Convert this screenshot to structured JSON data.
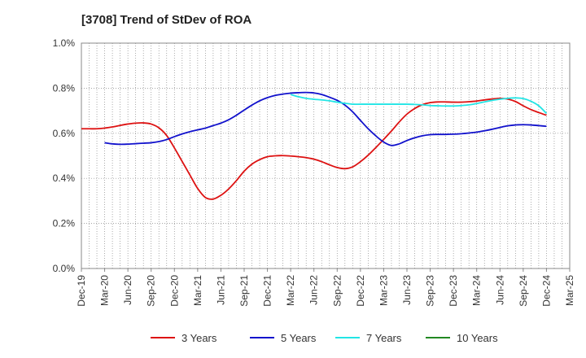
{
  "chart_data": {
    "type": "line",
    "title": "[3708]  Trend of StDev of ROA",
    "xlabel": "",
    "ylabel": "",
    "ylim": [
      0,
      1.0
    ],
    "yticks": [
      "0.0%",
      "0.2%",
      "0.4%",
      "0.6%",
      "0.8%",
      "1.0%"
    ],
    "x_ticks": [
      "Dec-19",
      "Mar-20",
      "Jun-20",
      "Sep-20",
      "Dec-20",
      "Mar-21",
      "Jun-21",
      "Sep-21",
      "Dec-21",
      "Mar-22",
      "Jun-22",
      "Sep-22",
      "Dec-22",
      "Mar-23",
      "Jun-23",
      "Sep-23",
      "Dec-23",
      "Mar-24",
      "Jun-24",
      "Sep-24",
      "Dec-24",
      "Mar-25"
    ],
    "grid": true,
    "legend_position": "bottom",
    "series": [
      {
        "name": "3 Years",
        "color": "#dd1111",
        "values": [
          [
            "Dec-19",
            0.62
          ],
          [
            "Jan-20",
            0.62
          ],
          [
            "Feb-20",
            0.62
          ],
          [
            "Mar-20",
            0.623
          ],
          [
            "Apr-20",
            0.628
          ],
          [
            "May-20",
            0.635
          ],
          [
            "Jun-20",
            0.641
          ],
          [
            "Jul-20",
            0.645
          ],
          [
            "Aug-20",
            0.646
          ],
          [
            "Sep-20",
            0.641
          ],
          [
            "Oct-20",
            0.624
          ],
          [
            "Nov-20",
            0.59
          ],
          [
            "Dec-20",
            0.535
          ],
          [
            "Jan-21",
            0.475
          ],
          [
            "Feb-21",
            0.415
          ],
          [
            "Mar-21",
            0.355
          ],
          [
            "Apr-21",
            0.315
          ],
          [
            "May-21",
            0.308
          ],
          [
            "Jun-21",
            0.325
          ],
          [
            "Jul-21",
            0.353
          ],
          [
            "Aug-21",
            0.39
          ],
          [
            "Sep-21",
            0.432
          ],
          [
            "Oct-21",
            0.463
          ],
          [
            "Nov-21",
            0.483
          ],
          [
            "Dec-21",
            0.496
          ],
          [
            "Jan-22",
            0.5
          ],
          [
            "Feb-22",
            0.501
          ],
          [
            "Mar-22",
            0.499
          ],
          [
            "Apr-22",
            0.496
          ],
          [
            "May-22",
            0.492
          ],
          [
            "Jun-22",
            0.485
          ],
          [
            "Jul-22",
            0.474
          ],
          [
            "Aug-22",
            0.46
          ],
          [
            "Sep-22",
            0.448
          ],
          [
            "Oct-22",
            0.443
          ],
          [
            "Nov-22",
            0.451
          ],
          [
            "Dec-22",
            0.474
          ],
          [
            "Jan-23",
            0.503
          ],
          [
            "Feb-23",
            0.537
          ],
          [
            "Mar-23",
            0.573
          ],
          [
            "Apr-23",
            0.61
          ],
          [
            "May-23",
            0.65
          ],
          [
            "Jun-23",
            0.685
          ],
          [
            "Jul-23",
            0.71
          ],
          [
            "Aug-23",
            0.727
          ],
          [
            "Sep-23",
            0.736
          ],
          [
            "Oct-23",
            0.739
          ],
          [
            "Nov-23",
            0.739
          ],
          [
            "Dec-23",
            0.738
          ],
          [
            "Jan-24",
            0.738
          ],
          [
            "Feb-24",
            0.74
          ],
          [
            "Mar-24",
            0.743
          ],
          [
            "Apr-24",
            0.748
          ],
          [
            "May-24",
            0.752
          ],
          [
            "Jun-24",
            0.755
          ],
          [
            "Jul-24",
            0.752
          ],
          [
            "Aug-24",
            0.741
          ],
          [
            "Sep-24",
            0.722
          ],
          [
            "Oct-24",
            0.705
          ],
          [
            "Nov-24",
            0.692
          ],
          [
            "Dec-24",
            0.68
          ]
        ]
      },
      {
        "name": "5 Years",
        "color": "#1111cc",
        "values": [
          [
            "Mar-20",
            0.558
          ],
          [
            "Apr-20",
            0.553
          ],
          [
            "May-20",
            0.551
          ],
          [
            "Jun-20",
            0.552
          ],
          [
            "Jul-20",
            0.554
          ],
          [
            "Aug-20",
            0.556
          ],
          [
            "Sep-20",
            0.558
          ],
          [
            "Oct-20",
            0.563
          ],
          [
            "Nov-20",
            0.572
          ],
          [
            "Dec-20",
            0.585
          ],
          [
            "Jan-21",
            0.597
          ],
          [
            "Feb-21",
            0.607
          ],
          [
            "Mar-21",
            0.615
          ],
          [
            "Apr-21",
            0.623
          ],
          [
            "May-21",
            0.634
          ],
          [
            "Jun-21",
            0.645
          ],
          [
            "Jul-21",
            0.66
          ],
          [
            "Aug-21",
            0.68
          ],
          [
            "Sep-21",
            0.703
          ],
          [
            "Oct-21",
            0.725
          ],
          [
            "Nov-21",
            0.744
          ],
          [
            "Dec-21",
            0.758
          ],
          [
            "Jan-22",
            0.768
          ],
          [
            "Feb-22",
            0.774
          ],
          [
            "Mar-22",
            0.778
          ],
          [
            "Apr-22",
            0.78
          ],
          [
            "May-22",
            0.781
          ],
          [
            "Jun-22",
            0.779
          ],
          [
            "Jul-22",
            0.772
          ],
          [
            "Aug-22",
            0.76
          ],
          [
            "Sep-22",
            0.746
          ],
          [
            "Oct-22",
            0.725
          ],
          [
            "Nov-22",
            0.695
          ],
          [
            "Dec-22",
            0.657
          ],
          [
            "Jan-23",
            0.62
          ],
          [
            "Feb-23",
            0.588
          ],
          [
            "Mar-23",
            0.561
          ],
          [
            "Apr-23",
            0.546
          ],
          [
            "May-23",
            0.553
          ],
          [
            "Jun-23",
            0.568
          ],
          [
            "Jul-23",
            0.58
          ],
          [
            "Aug-23",
            0.589
          ],
          [
            "Sep-23",
            0.594
          ],
          [
            "Oct-23",
            0.595
          ],
          [
            "Nov-23",
            0.595
          ],
          [
            "Dec-23",
            0.596
          ],
          [
            "Jan-24",
            0.598
          ],
          [
            "Feb-24",
            0.601
          ],
          [
            "Mar-24",
            0.605
          ],
          [
            "Apr-24",
            0.611
          ],
          [
            "May-24",
            0.618
          ],
          [
            "Jun-24",
            0.626
          ],
          [
            "Jul-24",
            0.633
          ],
          [
            "Aug-24",
            0.637
          ],
          [
            "Sep-24",
            0.638
          ],
          [
            "Oct-24",
            0.637
          ],
          [
            "Nov-24",
            0.634
          ],
          [
            "Dec-24",
            0.631
          ]
        ]
      },
      {
        "name": "7 Years",
        "color": "#22e5e5",
        "values": [
          [
            "Mar-22",
            0.772
          ],
          [
            "Apr-22",
            0.762
          ],
          [
            "May-22",
            0.755
          ],
          [
            "Jun-22",
            0.751
          ],
          [
            "Jul-22",
            0.748
          ],
          [
            "Aug-22",
            0.744
          ],
          [
            "Sep-22",
            0.738
          ],
          [
            "Oct-22",
            0.733
          ],
          [
            "Nov-22",
            0.729
          ],
          [
            "Dec-22",
            0.729
          ],
          [
            "Jan-23",
            0.729
          ],
          [
            "Feb-23",
            0.729
          ],
          [
            "Mar-23",
            0.729
          ],
          [
            "Apr-23",
            0.729
          ],
          [
            "May-23",
            0.729
          ],
          [
            "Jun-23",
            0.729
          ],
          [
            "Jul-23",
            0.728
          ],
          [
            "Aug-23",
            0.726
          ],
          [
            "Sep-23",
            0.723
          ],
          [
            "Oct-23",
            0.722
          ],
          [
            "Nov-23",
            0.721
          ],
          [
            "Dec-23",
            0.721
          ],
          [
            "Jan-24",
            0.723
          ],
          [
            "Feb-24",
            0.726
          ],
          [
            "Mar-24",
            0.732
          ],
          [
            "Apr-24",
            0.739
          ],
          [
            "May-24",
            0.746
          ],
          [
            "Jun-24",
            0.751
          ],
          [
            "Jul-24",
            0.755
          ],
          [
            "Aug-24",
            0.757
          ],
          [
            "Sep-24",
            0.754
          ],
          [
            "Oct-24",
            0.742
          ],
          [
            "Nov-24",
            0.722
          ],
          [
            "Dec-24",
            0.688
          ]
        ]
      },
      {
        "name": "10 Years",
        "color": "#228822",
        "values": []
      }
    ]
  }
}
